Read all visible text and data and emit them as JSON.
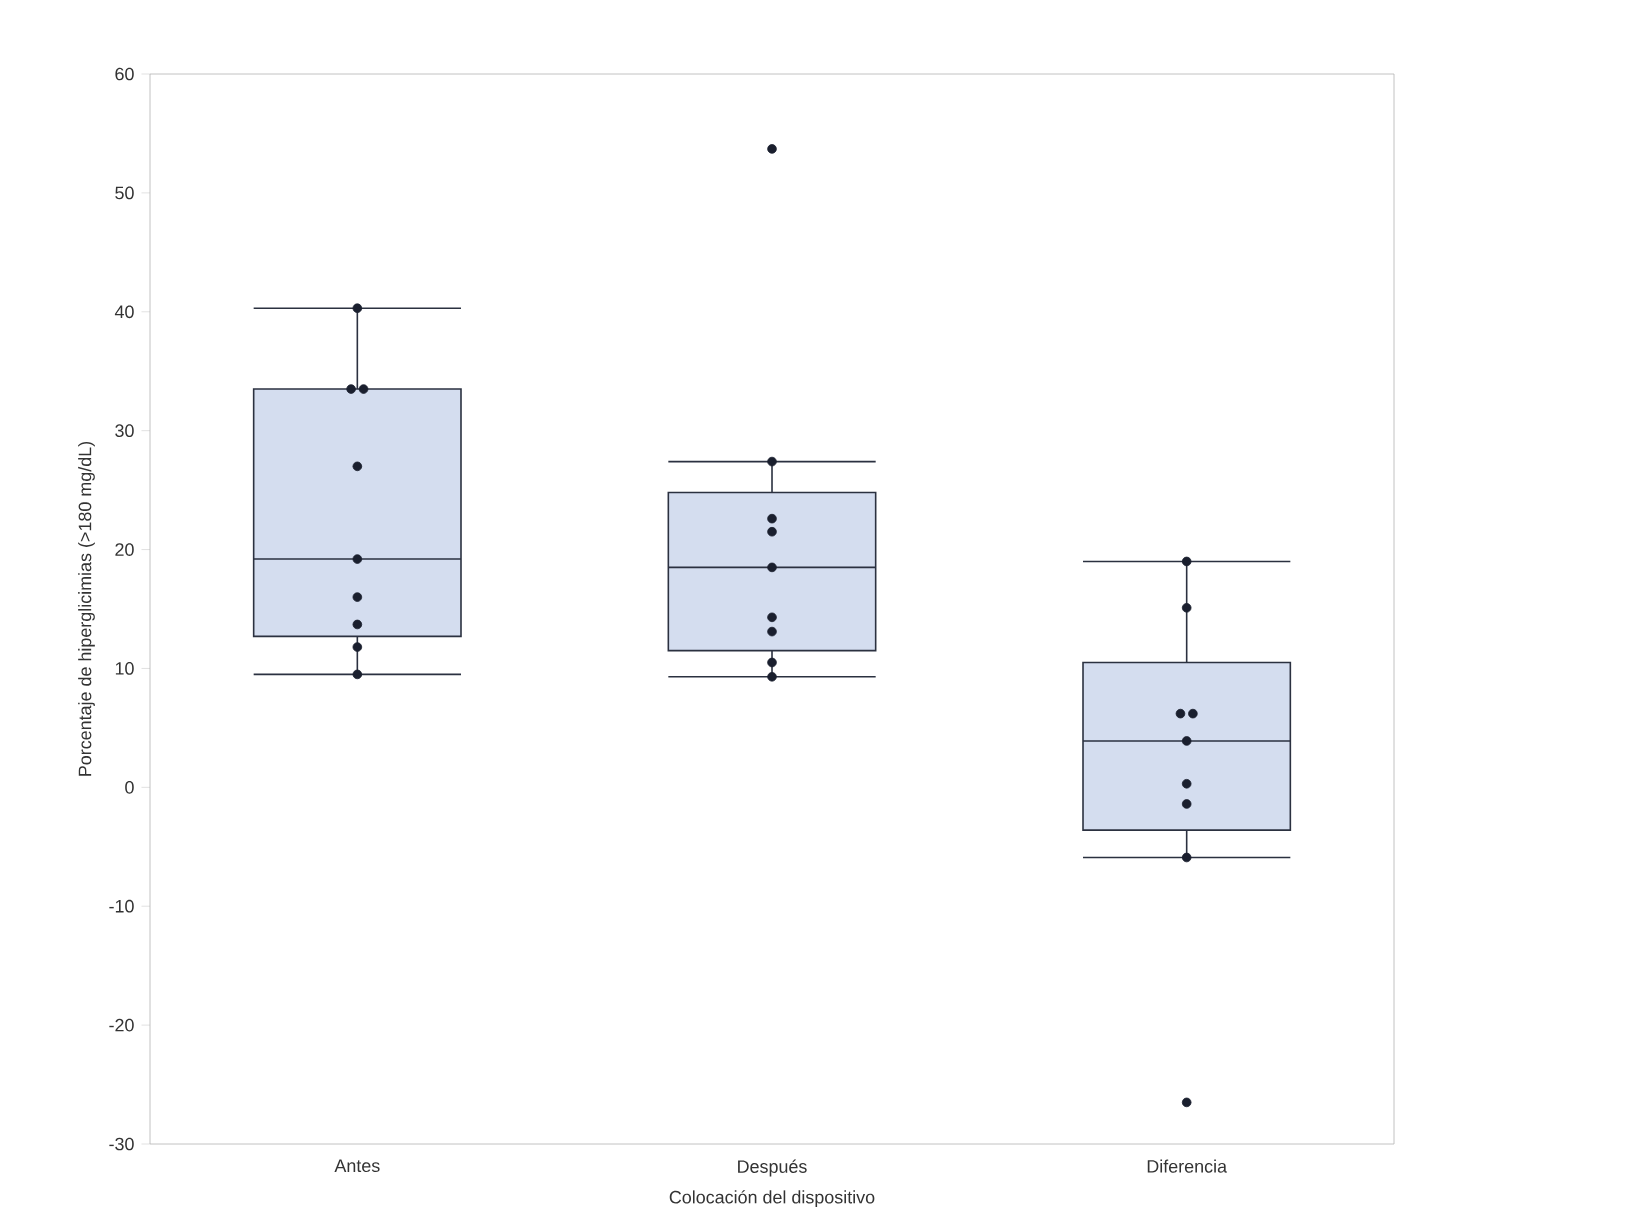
{
  "chart_data": {
    "type": "box",
    "xlabel": "Colocación del dispositivo",
    "ylabel": "Porcentaje de hiperglicimias (>180 mg/dL)",
    "categories": [
      "Antes",
      "Después",
      "Diferencia"
    ],
    "boxes": [
      {
        "low": 9.5,
        "q1": 12.7,
        "median": 19.2,
        "q3": 33.5,
        "high": 40.3
      },
      {
        "low": 9.3,
        "q1": 11.5,
        "median": 18.5,
        "q3": 24.8,
        "high": 27.4
      },
      {
        "low": -5.9,
        "q1": -3.6,
        "median": 3.9,
        "q3": 10.5,
        "high": 19.0
      }
    ],
    "color": "#d4ddef",
    "ylim": [
      -30,
      60
    ],
    "yticks": [
      -30,
      -20,
      -10,
      0,
      10,
      20,
      30,
      40,
      50,
      60
    ],
    "grid": false,
    "series": [
      {
        "type": "scatter",
        "color": "#1a1f2e",
        "x": [
          "Antes",
          "Antes",
          "Antes",
          "Antes",
          "Antes",
          "Antes",
          "Antes",
          "Antes",
          "Antes",
          "Después",
          "Después",
          "Después",
          "Después",
          "Después",
          "Después",
          "Después",
          "Después",
          "Después",
          "Diferencia",
          "Diferencia",
          "Diferencia",
          "Diferencia",
          "Diferencia",
          "Diferencia",
          "Diferencia",
          "Diferencia",
          "Diferencia"
        ],
        "values": [
          40.3,
          33.5,
          33.5,
          27.0,
          19.2,
          16.0,
          13.7,
          11.8,
          9.5,
          53.7,
          27.4,
          22.6,
          21.5,
          18.5,
          14.3,
          13.1,
          10.5,
          9.3,
          19.0,
          15.1,
          6.2,
          6.2,
          3.9,
          0.3,
          -1.4,
          -5.9,
          -26.5
        ]
      }
    ]
  }
}
